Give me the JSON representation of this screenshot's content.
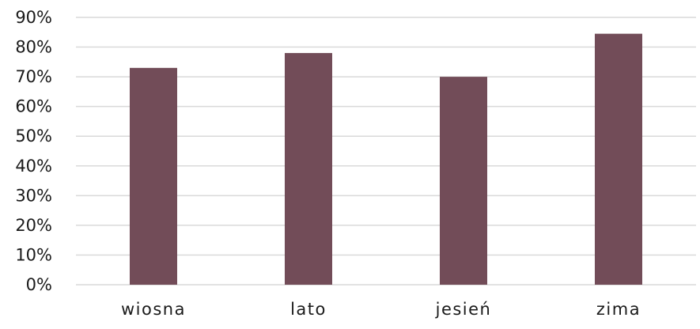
{
  "chart_data": {
    "type": "bar",
    "categories": [
      "wiosna",
      "lato",
      "jesień",
      "zima"
    ],
    "series": [
      {
        "values": [
          73,
          78,
          70,
          84.5
        ]
      }
    ],
    "y_ticks": [
      "0%",
      "10%",
      "20%",
      "30%",
      "40%",
      "50%",
      "60%",
      "70%",
      "80%",
      "90%"
    ],
    "ylim": [
      0,
      90
    ],
    "y_unit": "%",
    "grid": true,
    "legend": "none",
    "colors": {
      "bar": "#724c58",
      "grid": "#d9d9d9",
      "text": "#1a1a1a"
    }
  }
}
